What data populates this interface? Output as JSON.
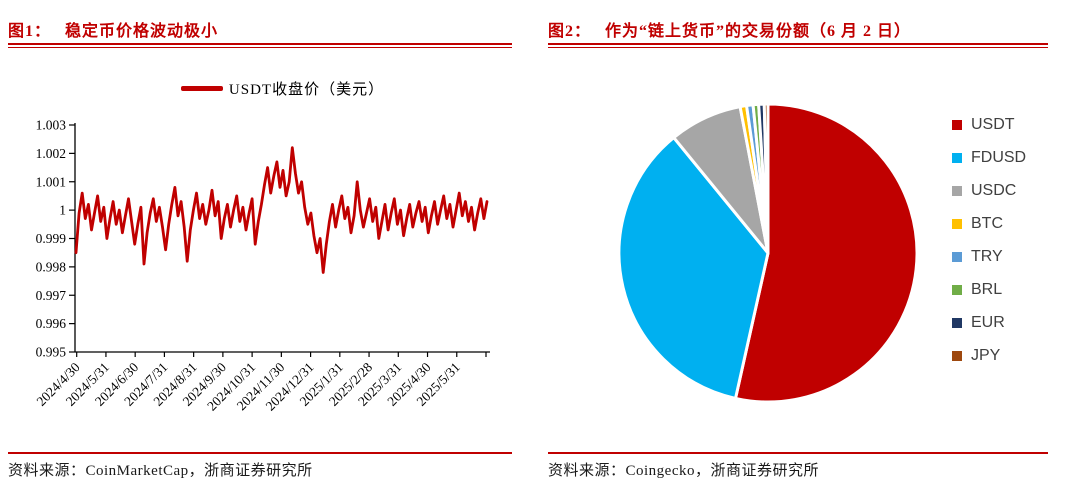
{
  "figures": [
    {
      "tag": "图1：",
      "title": "稳定币价格波动极小",
      "source": "资料来源：CoinMarketCap，浙商证券研究所"
    },
    {
      "tag": "图2：",
      "title": "作为“链上货币”的交易份额（6 月 2 日）",
      "source": "资料来源：Coingecko，浙商证券研究所"
    }
  ],
  "colors": {
    "accent_red": "#C00000",
    "axis_black": "#000000",
    "legend_text_gray": "#404040",
    "pie_gap_white": "#ffffff"
  },
  "chart_data": [
    {
      "type": "line",
      "title": "USDT收盘价（美元）",
      "legend_position": "top",
      "grid": false,
      "ylim": [
        0.995,
        1.003
      ],
      "y_tick_labels": [
        "1.003",
        "1.002",
        "1.001",
        "1",
        "0.999",
        "0.998",
        "0.997",
        "0.996",
        "0.995"
      ],
      "y_ticks": [
        1.003,
        1.002,
        1.001,
        1.0,
        0.999,
        0.998,
        0.997,
        0.996,
        0.995
      ],
      "x_labels": [
        "2024/4/30",
        "2024/5/31",
        "2024/6/30",
        "2024/7/31",
        "2024/8/31",
        "2024/9/30",
        "2024/10/31",
        "2024/11/30",
        "2024/12/31",
        "2025/1/31",
        "2025/2/28",
        "2025/3/31",
        "2025/4/30",
        "2025/5/31"
      ],
      "series": [
        {
          "name": "USDT收盘价（美元）",
          "color": "#C00000",
          "values": [
            0.9985,
            0.9999,
            1.0006,
            0.9997,
            1.0002,
            0.9993,
            0.9999,
            1.0005,
            0.9996,
            1.0001,
            0.999,
            0.9997,
            1.0003,
            0.9995,
            1.0,
            0.9992,
            0.9998,
            1.0004,
            0.9996,
            0.9988,
            0.9995,
            1.0001,
            0.9981,
            0.9992,
            0.9999,
            1.0004,
            0.9996,
            1.0001,
            0.9994,
            0.9986,
            0.9995,
            1.0002,
            1.0008,
            0.9998,
            1.0003,
            0.9994,
            0.9982,
            0.9993,
            1.0,
            1.0006,
            0.9997,
            1.0002,
            0.9995,
            1.0,
            1.0007,
            0.9998,
            1.0003,
            0.999,
            0.9997,
            1.0002,
            0.9994,
            1.0,
            1.0005,
            0.9996,
            1.0001,
            0.9993,
            0.9999,
            1.0004,
            0.9988,
            0.9996,
            1.0002,
            1.0009,
            1.0015,
            1.0006,
            1.0012,
            1.0017,
            1.0008,
            1.0014,
            1.0005,
            1.001,
            1.0022,
            1.0013,
            1.0006,
            1.001,
            1.0001,
            0.9995,
            0.9999,
            0.9991,
            0.9985,
            0.999,
            0.9978,
            0.9988,
            0.9996,
            1.0002,
            0.9994,
            1.0,
            1.0005,
            0.9997,
            1.0001,
            0.9992,
            0.9998,
            1.001,
            1.0,
            0.9994,
            0.9999,
            1.0004,
            0.9996,
            1.0001,
            0.999,
            0.9996,
            1.0002,
            0.9993,
            0.9999,
            1.0004,
            0.9995,
            1.0,
            0.9991,
            0.9997,
            1.0002,
            0.9994,
            0.9999,
            1.0003,
            0.9996,
            1.0001,
            0.9992,
            0.9998,
            1.0003,
            0.9995,
            1.0,
            1.0005,
            0.9997,
            1.0002,
            0.9994,
            1.0,
            1.0006,
            0.9998,
            1.0003,
            0.9996,
            1.0001,
            0.9993,
            0.9999,
            1.0004,
            0.9997,
            1.0003
          ]
        }
      ]
    },
    {
      "type": "pie",
      "title": "作为“链上货币”的交易份额（6 月 2 日）",
      "unit": "percent",
      "start_angle_deg": 0,
      "legend_position": "right",
      "series": [
        {
          "name": "USDT",
          "value": 53.5,
          "color": "#C00000"
        },
        {
          "name": "FDUSD",
          "value": 35.6,
          "color": "#00B0F0"
        },
        {
          "name": "USDC",
          "value": 7.9,
          "color": "#A6A6A6"
        },
        {
          "name": "BTC",
          "value": 0.7,
          "color": "#FFC000"
        },
        {
          "name": "TRY",
          "value": 0.7,
          "color": "#5B9BD5"
        },
        {
          "name": "BRL",
          "value": 0.6,
          "color": "#70AD47"
        },
        {
          "name": "EUR",
          "value": 0.6,
          "color": "#203864"
        },
        {
          "name": "JPY",
          "value": 0.4,
          "color": "#9E480E"
        }
      ]
    }
  ]
}
